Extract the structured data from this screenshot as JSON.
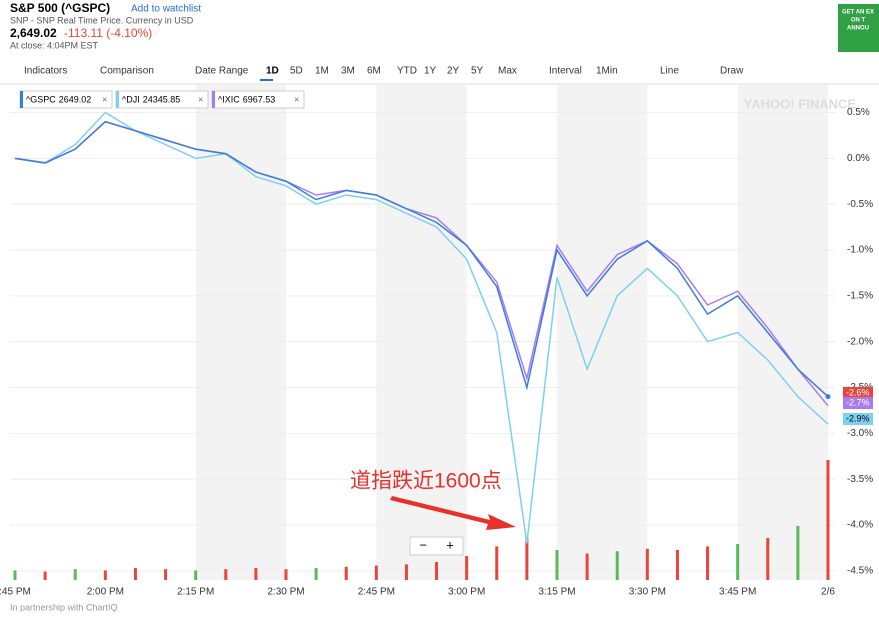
{
  "header": {
    "title": "S&P 500 (^GSPC)",
    "watchlist": "Add to watchlist",
    "subtitle": "SNP - SNP Real Time Price. Currency in USD",
    "price": "2,649.02",
    "change": "-113.11 (-4.10%)",
    "close_time": "At close: 4:04PM EST"
  },
  "ad": [
    "GET AN EX",
    "ON T",
    "ANNOU"
  ],
  "toolbar": [
    "Indicators",
    "Comparison",
    "Date Range",
    "1D",
    "5D",
    "1M",
    "3M",
    "6M",
    "YTD",
    "1Y",
    "2Y",
    "5Y",
    "Max",
    "Interval",
    "1Min",
    "Line",
    "Draw"
  ],
  "zoom": [
    "−",
    "+"
  ],
  "footer": "In partnership with ChartIQ",
  "chart_data": {
    "type": "line",
    "watermark": "YAHOO! FINANCE",
    "annotation": "道指跌近1600点",
    "categories": [
      ":45 PM",
      null,
      null,
      "2:00 PM",
      null,
      null,
      "2:15 PM",
      null,
      null,
      "2:30 PM",
      null,
      null,
      "2:45 PM",
      null,
      null,
      "3:00 PM",
      null,
      null,
      "3:15 PM",
      null,
      null,
      "3:30 PM",
      null,
      null,
      "3:45 PM",
      null,
      null,
      "2/6"
    ],
    "series": [
      {
        "name": "^GSPC",
        "price": "2649.02",
        "color": "#3b7dd8",
        "end_label": "-2.6%",
        "end_color": "#e8453c",
        "values": [
          0,
          -0.05,
          0.1,
          0.4,
          0.3,
          0.2,
          0.1,
          0.05,
          -0.15,
          -0.25,
          -0.45,
          -0.35,
          -0.4,
          -0.55,
          -0.7,
          -0.95,
          -1.4,
          -2.5,
          -1.0,
          -1.5,
          -1.1,
          -0.9,
          -1.2,
          -1.7,
          -1.5,
          -1.9,
          -2.3,
          -2.6
        ]
      },
      {
        "name": "^DJI",
        "price": "24345.85",
        "color": "#7fd0f0",
        "end_label": "-2.9%",
        "end_color": "#7fd0f0",
        "values": [
          0,
          -0.05,
          0.15,
          0.5,
          0.3,
          0.15,
          0,
          0.05,
          -0.2,
          -0.3,
          -0.5,
          -0.4,
          -0.45,
          -0.6,
          -0.75,
          -1.1,
          -1.9,
          -4.2,
          -1.3,
          -2.3,
          -1.5,
          -1.2,
          -1.5,
          -2.0,
          -1.9,
          -2.2,
          -2.6,
          -2.9
        ]
      },
      {
        "name": "^IXIC",
        "price": "6967.53",
        "color": "#a77cf0",
        "end_label": "-2.7%",
        "end_color": "#a77cf0",
        "values": [
          0,
          -0.05,
          0.1,
          0.4,
          0.3,
          0.2,
          0.1,
          0.05,
          -0.15,
          -0.25,
          -0.4,
          -0.35,
          -0.4,
          -0.55,
          -0.65,
          -0.95,
          -1.35,
          -2.4,
          -0.95,
          -1.45,
          -1.05,
          -0.9,
          -1.15,
          -1.6,
          -1.45,
          -1.85,
          -2.3,
          -2.7
        ]
      }
    ],
    "volume": {
      "values": [
        8,
        7,
        9,
        8,
        10,
        9,
        8,
        9,
        10,
        9,
        10,
        11,
        12,
        13,
        15,
        20,
        28,
        35,
        25,
        22,
        24,
        26,
        25,
        28,
        30,
        35,
        45,
        100
      ],
      "colors": [
        "#5cb85c",
        "#e8453c",
        "#5cb85c",
        "#e8453c",
        "#e8453c",
        "#e8453c",
        "#5cb85c",
        "#e8453c",
        "#e8453c",
        "#e8453c",
        "#5cb85c",
        "#e8453c",
        "#e8453c",
        "#e8453c",
        "#e8453c",
        "#e8453c",
        "#e8453c",
        "#e8453c",
        "#5cb85c",
        "#e8453c",
        "#5cb85c",
        "#e8453c",
        "#e8453c",
        "#e8453c",
        "#5cb85c",
        "#e8453c",
        "#5cb85c",
        "#e8453c"
      ]
    },
    "ylim": [
      -4.6,
      0.8
    ],
    "yticks": [
      {
        "value": 0.5,
        "label": "0.5%"
      },
      {
        "value": 0,
        "label": "0.0%"
      },
      {
        "value": -0.5,
        "label": "-0.5%"
      },
      {
        "value": -1,
        "label": "-1.0%"
      },
      {
        "value": -1.5,
        "label": "-1.5%"
      },
      {
        "value": -2,
        "label": "-2.0%"
      },
      {
        "value": -2.5,
        "label": "-2.5%"
      },
      {
        "value": -3,
        "label": "-3.0%"
      },
      {
        "value": -3.5,
        "label": "-3.5%"
      },
      {
        "value": -4,
        "label": "-4.0%"
      },
      {
        "value": -4.5,
        "label": "-4.5%"
      }
    ],
    "grid": true
  }
}
